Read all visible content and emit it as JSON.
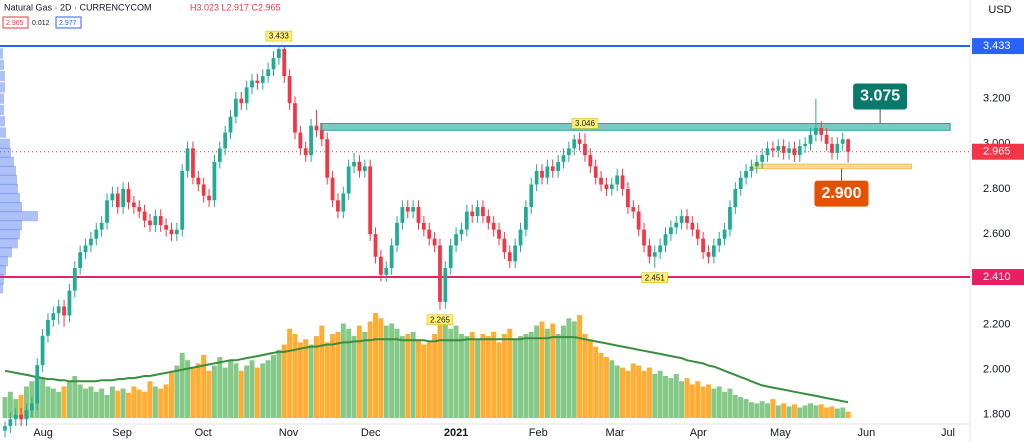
{
  "header": {
    "title": "Natural Gas · 2D · CURRENCYCOM",
    "ohlc": "H3.023 L2.917 C2.965",
    "bid": "2.965",
    "spread": "0.012",
    "ask": "2.977",
    "currency": "USD"
  },
  "chart_data": {
    "type": "candlestick",
    "up_color": "#22ab94",
    "down_color": "#f23645",
    "volume_up_color": "#66bb6a",
    "volume_down_color": "#ff9800",
    "volume_ma_color": "#388e3c",
    "xlim": [
      -0.93,
      179.7
    ],
    "ylim": [
      1.768,
      3.637
    ],
    "grid": false,
    "xticks": [
      {
        "value": 7.1,
        "label": "Aug"
      },
      {
        "value": 21.8,
        "label": "Sep"
      },
      {
        "value": 36.9,
        "label": "Oct"
      },
      {
        "value": 52.8,
        "label": "Nov"
      },
      {
        "value": 68.1,
        "label": "Dec"
      },
      {
        "value": 84,
        "label": "2021"
      },
      {
        "value": 99.3,
        "label": "Feb"
      },
      {
        "value": 113.6,
        "label": "Mar"
      },
      {
        "value": 129.1,
        "label": "Apr"
      },
      {
        "value": 144.4,
        "label": "May"
      },
      {
        "value": 160.4,
        "label": "Jun"
      },
      {
        "value": 175.6,
        "label": "Jul"
      }
    ],
    "yticks": [
      {
        "value": 1.8,
        "label": "1.800"
      },
      {
        "value": 2.0,
        "label": "2.000"
      },
      {
        "value": 2.2,
        "label": "2.200"
      },
      {
        "value": 2.6,
        "label": "2.600"
      },
      {
        "value": 2.8,
        "label": "2.800"
      },
      {
        "value": 3.0,
        "label": "3.000"
      },
      {
        "value": 3.2,
        "label": "3.200"
      }
    ],
    "ohlc": [
      [
        1.73,
        1.77,
        1.7,
        1.75
      ],
      [
        1.75,
        1.81,
        1.72,
        1.78
      ],
      [
        1.78,
        1.83,
        1.75,
        1.8
      ],
      [
        1.8,
        1.83,
        1.75,
        1.78
      ],
      [
        1.78,
        1.85,
        1.75,
        1.82
      ],
      [
        1.82,
        1.88,
        1.79,
        1.85
      ],
      [
        1.85,
        2.05,
        1.82,
        2.02
      ],
      [
        2.02,
        2.18,
        1.99,
        2.15
      ],
      [
        2.15,
        2.25,
        2.12,
        2.22
      ],
      [
        2.22,
        2.28,
        2.19,
        2.25
      ],
      [
        2.25,
        2.31,
        2.2,
        2.28
      ],
      [
        2.28,
        2.31,
        2.19,
        2.24
      ],
      [
        2.24,
        2.38,
        2.21,
        2.35
      ],
      [
        2.35,
        2.48,
        2.32,
        2.45
      ],
      [
        2.45,
        2.55,
        2.42,
        2.52
      ],
      [
        2.52,
        2.58,
        2.49,
        2.55
      ],
      [
        2.55,
        2.61,
        2.52,
        2.58
      ],
      [
        2.58,
        2.65,
        2.55,
        2.62
      ],
      [
        2.62,
        2.68,
        2.59,
        2.65
      ],
      [
        2.65,
        2.78,
        2.62,
        2.75
      ],
      [
        2.75,
        2.81,
        2.72,
        2.78
      ],
      [
        2.78,
        2.81,
        2.69,
        2.72
      ],
      [
        2.72,
        2.83,
        2.69,
        2.8
      ],
      [
        2.8,
        2.83,
        2.71,
        2.74
      ],
      [
        2.74,
        2.77,
        2.69,
        2.72
      ],
      [
        2.72,
        2.75,
        2.67,
        2.7
      ],
      [
        2.7,
        2.73,
        2.63,
        2.66
      ],
      [
        2.66,
        2.69,
        2.61,
        2.64
      ],
      [
        2.64,
        2.71,
        2.61,
        2.68
      ],
      [
        2.68,
        2.71,
        2.61,
        2.64
      ],
      [
        2.64,
        2.67,
        2.59,
        2.62
      ],
      [
        2.62,
        2.65,
        2.57,
        2.6
      ],
      [
        2.6,
        2.65,
        2.57,
        2.62
      ],
      [
        2.62,
        2.91,
        2.59,
        2.88
      ],
      [
        2.88,
        3.01,
        2.85,
        2.98
      ],
      [
        2.98,
        3.01,
        2.82,
        2.85
      ],
      [
        2.85,
        2.88,
        2.79,
        2.82
      ],
      [
        2.82,
        2.85,
        2.74,
        2.77
      ],
      [
        2.77,
        2.8,
        2.72,
        2.75
      ],
      [
        2.75,
        2.95,
        2.72,
        2.92
      ],
      [
        2.92,
        3.01,
        2.89,
        2.98
      ],
      [
        2.98,
        3.08,
        2.95,
        3.05
      ],
      [
        3.05,
        3.15,
        3.02,
        3.12
      ],
      [
        3.12,
        3.23,
        3.09,
        3.2
      ],
      [
        3.2,
        3.23,
        3.15,
        3.18
      ],
      [
        3.18,
        3.28,
        3.15,
        3.25
      ],
      [
        3.25,
        3.31,
        3.22,
        3.28
      ],
      [
        3.28,
        3.31,
        3.24,
        3.27
      ],
      [
        3.27,
        3.33,
        3.24,
        3.3
      ],
      [
        3.3,
        3.36,
        3.27,
        3.33
      ],
      [
        3.33,
        3.41,
        3.3,
        3.38
      ],
      [
        3.38,
        3.433,
        3.35,
        3.42
      ],
      [
        3.42,
        3.43,
        3.27,
        3.3
      ],
      [
        3.3,
        3.33,
        3.15,
        3.18
      ],
      [
        3.18,
        3.21,
        3.02,
        3.05
      ],
      [
        3.05,
        3.08,
        2.95,
        2.98
      ],
      [
        2.98,
        3.01,
        2.92,
        2.95
      ],
      [
        2.95,
        3.11,
        2.92,
        3.08
      ],
      [
        3.08,
        3.15,
        3.03,
        3.06
      ],
      [
        3.06,
        3.09,
        2.99,
        3.02
      ],
      [
        3.02,
        3.05,
        2.82,
        2.85
      ],
      [
        2.85,
        2.88,
        2.72,
        2.75
      ],
      [
        2.75,
        2.78,
        2.67,
        2.7
      ],
      [
        2.7,
        2.81,
        2.67,
        2.78
      ],
      [
        2.78,
        2.93,
        2.75,
        2.9
      ],
      [
        2.9,
        2.96,
        2.87,
        2.92
      ],
      [
        2.92,
        2.95,
        2.85,
        2.88
      ],
      [
        2.88,
        2.93,
        2.85,
        2.9
      ],
      [
        2.9,
        2.93,
        2.57,
        2.6
      ],
      [
        2.6,
        2.63,
        2.47,
        2.5
      ],
      [
        2.5,
        2.53,
        2.39,
        2.42
      ],
      [
        2.42,
        2.48,
        2.39,
        2.45
      ],
      [
        2.45,
        2.58,
        2.42,
        2.55
      ],
      [
        2.55,
        2.68,
        2.52,
        2.65
      ],
      [
        2.65,
        2.75,
        2.62,
        2.72
      ],
      [
        2.72,
        2.75,
        2.67,
        2.7
      ],
      [
        2.7,
        2.75,
        2.67,
        2.72
      ],
      [
        2.72,
        2.75,
        2.62,
        2.65
      ],
      [
        2.65,
        2.68,
        2.59,
        2.62
      ],
      [
        2.62,
        2.65,
        2.55,
        2.58
      ],
      [
        2.58,
        2.61,
        2.52,
        2.55
      ],
      [
        2.55,
        2.58,
        2.265,
        2.3
      ],
      [
        2.3,
        2.48,
        2.27,
        2.45
      ],
      [
        2.45,
        2.58,
        2.42,
        2.55
      ],
      [
        2.55,
        2.63,
        2.52,
        2.6
      ],
      [
        2.6,
        2.65,
        2.57,
        2.62
      ],
      [
        2.62,
        2.73,
        2.59,
        2.7
      ],
      [
        2.7,
        2.73,
        2.65,
        2.68
      ],
      [
        2.68,
        2.75,
        2.65,
        2.72
      ],
      [
        2.72,
        2.75,
        2.65,
        2.68
      ],
      [
        2.68,
        2.71,
        2.62,
        2.65
      ],
      [
        2.65,
        2.68,
        2.59,
        2.62
      ],
      [
        2.62,
        2.65,
        2.55,
        2.58
      ],
      [
        2.58,
        2.61,
        2.49,
        2.52
      ],
      [
        2.52,
        2.55,
        2.45,
        2.48
      ],
      [
        2.48,
        2.58,
        2.45,
        2.55
      ],
      [
        2.55,
        2.65,
        2.52,
        2.62
      ],
      [
        2.62,
        2.75,
        2.59,
        2.72
      ],
      [
        2.72,
        2.85,
        2.69,
        2.82
      ],
      [
        2.82,
        2.91,
        2.79,
        2.88
      ],
      [
        2.88,
        2.91,
        2.82,
        2.85
      ],
      [
        2.85,
        2.93,
        2.82,
        2.9
      ],
      [
        2.9,
        2.93,
        2.85,
        2.88
      ],
      [
        2.88,
        2.95,
        2.85,
        2.92
      ],
      [
        2.92,
        2.98,
        2.89,
        2.95
      ],
      [
        2.95,
        3.01,
        2.92,
        2.98
      ],
      [
        2.98,
        3.04,
        2.95,
        3.02
      ],
      [
        3.02,
        3.05,
        2.97,
        3.0
      ],
      [
        3.0,
        3.046,
        2.92,
        2.95
      ],
      [
        2.95,
        2.98,
        2.87,
        2.9
      ],
      [
        2.9,
        2.93,
        2.82,
        2.85
      ],
      [
        2.85,
        2.88,
        2.79,
        2.82
      ],
      [
        2.82,
        2.85,
        2.77,
        2.8
      ],
      [
        2.8,
        2.85,
        2.77,
        2.82
      ],
      [
        2.82,
        2.89,
        2.79,
        2.86
      ],
      [
        2.86,
        2.89,
        2.77,
        2.8
      ],
      [
        2.8,
        2.83,
        2.69,
        2.72
      ],
      [
        2.72,
        2.75,
        2.67,
        2.7
      ],
      [
        2.7,
        2.73,
        2.59,
        2.62
      ],
      [
        2.62,
        2.65,
        2.52,
        2.55
      ],
      [
        2.55,
        2.58,
        2.47,
        2.5
      ],
      [
        2.5,
        2.55,
        2.451,
        2.52
      ],
      [
        2.52,
        2.58,
        2.49,
        2.55
      ],
      [
        2.55,
        2.63,
        2.52,
        2.6
      ],
      [
        2.6,
        2.66,
        2.57,
        2.63
      ],
      [
        2.63,
        2.68,
        2.6,
        2.65
      ],
      [
        2.65,
        2.71,
        2.62,
        2.68
      ],
      [
        2.68,
        2.71,
        2.62,
        2.65
      ],
      [
        2.65,
        2.68,
        2.59,
        2.62
      ],
      [
        2.62,
        2.65,
        2.55,
        2.58
      ],
      [
        2.58,
        2.61,
        2.49,
        2.52
      ],
      [
        2.52,
        2.55,
        2.47,
        2.5
      ],
      [
        2.5,
        2.58,
        2.47,
        2.55
      ],
      [
        2.55,
        2.61,
        2.52,
        2.58
      ],
      [
        2.58,
        2.65,
        2.55,
        2.62
      ],
      [
        2.62,
        2.75,
        2.59,
        2.72
      ],
      [
        2.72,
        2.83,
        2.69,
        2.8
      ],
      [
        2.8,
        2.88,
        2.77,
        2.85
      ],
      [
        2.85,
        2.91,
        2.82,
        2.88
      ],
      [
        2.88,
        2.93,
        2.85,
        2.9
      ],
      [
        2.9,
        2.95,
        2.87,
        2.92
      ],
      [
        2.92,
        2.98,
        2.89,
        2.95
      ],
      [
        2.95,
        3.01,
        2.92,
        2.98
      ],
      [
        2.98,
        3.01,
        2.94,
        2.97
      ],
      [
        2.97,
        3.02,
        2.94,
        2.99
      ],
      [
        2.99,
        3.02,
        2.93,
        2.96
      ],
      [
        2.96,
        3.01,
        2.93,
        2.98
      ],
      [
        2.98,
        3.01,
        2.92,
        2.95
      ],
      [
        2.95,
        3.02,
        2.92,
        2.99
      ],
      [
        2.99,
        3.03,
        2.96,
        3.0
      ],
      [
        3.0,
        3.07,
        2.97,
        3.04
      ],
      [
        3.04,
        3.2,
        3.01,
        3.07
      ],
      [
        3.07,
        3.1,
        3.01,
        3.04
      ],
      [
        3.04,
        3.07,
        2.97,
        3.0
      ],
      [
        3.0,
        3.03,
        2.93,
        2.96
      ],
      [
        2.96,
        3.03,
        2.93,
        3.0
      ],
      [
        3.0,
        3.05,
        2.97,
        3.02
      ],
      [
        3.02,
        3.023,
        2.917,
        2.965
      ]
    ],
    "volume": [
      20,
      25,
      18,
      22,
      30,
      35,
      40,
      38,
      30,
      28,
      25,
      30,
      35,
      40,
      32,
      28,
      30,
      25,
      28,
      22,
      30,
      26,
      28,
      24,
      30,
      27,
      25,
      35,
      30,
      28,
      32,
      45,
      50,
      62,
      55,
      48,
      52,
      60,
      45,
      50,
      58,
      48,
      55,
      52,
      45,
      50,
      55,
      48,
      52,
      55,
      60,
      65,
      70,
      85,
      80,
      72,
      75,
      70,
      78,
      88,
      72,
      80,
      82,
      90,
      85,
      78,
      88,
      82,
      92,
      100,
      95,
      88,
      90,
      85,
      78,
      80,
      82,
      75,
      70,
      72,
      80,
      95,
      92,
      85,
      88,
      80,
      78,
      82,
      75,
      80,
      78,
      82,
      72,
      80,
      85,
      75,
      78,
      80,
      82,
      88,
      92,
      85,
      90,
      80,
      88,
      95,
      92,
      98,
      80,
      75,
      68,
      62,
      58,
      55,
      50,
      48,
      45,
      52,
      50,
      45,
      48,
      42,
      45,
      40,
      38,
      42,
      35,
      38,
      32,
      35,
      30,
      32,
      28,
      30,
      25,
      28,
      22,
      20,
      18,
      15,
      14,
      16,
      14,
      18,
      12,
      14,
      11,
      13,
      10,
      12,
      14,
      12,
      13,
      10,
      11,
      9,
      10,
      6
    ],
    "volume_ma": [
      45,
      44,
      43,
      42,
      41,
      40,
      39,
      38,
      37,
      37,
      36,
      36,
      35,
      35,
      35,
      35,
      35,
      35,
      36,
      36,
      36,
      37,
      37,
      38,
      38,
      39,
      40,
      40,
      41,
      42,
      43,
      44,
      45,
      46,
      47,
      48,
      49,
      50,
      51,
      52,
      53,
      54,
      55,
      55,
      56,
      57,
      58,
      59,
      60,
      61,
      62,
      63,
      63,
      64,
      65,
      66,
      67,
      68,
      68,
      69,
      70,
      70,
      71,
      72,
      72,
      73,
      73,
      74,
      74,
      75,
      75,
      75,
      75,
      75,
      74,
      74,
      74,
      74,
      74,
      73,
      73,
      74,
      74,
      74,
      74,
      74,
      75,
      75,
      75,
      75,
      75,
      75,
      75,
      75,
      75,
      75,
      75,
      76,
      76,
      76,
      76,
      76,
      77,
      77,
      77,
      77,
      77,
      76,
      75,
      74,
      73,
      72,
      71,
      70,
      69,
      68,
      67,
      66,
      65,
      64,
      63,
      62,
      61,
      60,
      59,
      58,
      57,
      55,
      54,
      53,
      52,
      50,
      49,
      47,
      45,
      43,
      41,
      39,
      37,
      35,
      33,
      31,
      30,
      29,
      28,
      27,
      26,
      25,
      24,
      23,
      22,
      21,
      20,
      19,
      18,
      17,
      16,
      15
    ],
    "volume_profile": {
      "color": "#6a8cf0",
      "prices": [
        3.4,
        3.35,
        3.3,
        3.25,
        3.2,
        3.15,
        3.1,
        3.05,
        3.0,
        2.96,
        2.92,
        2.88,
        2.84,
        2.8,
        2.76,
        2.72,
        2.68,
        2.64,
        2.6,
        2.56,
        2.52,
        2.48,
        2.44,
        2.4,
        2.36
      ],
      "sizes": [
        3,
        4,
        5,
        5,
        4,
        4,
        5,
        6,
        10,
        11,
        14,
        16,
        17,
        18,
        20,
        22,
        38,
        22,
        20,
        18,
        12,
        8,
        6,
        4,
        3
      ]
    },
    "levels": [
      {
        "value": 3.433,
        "label": "3.433",
        "color": "#2962ff"
      },
      {
        "value": 2.41,
        "label": "2.410",
        "color": "#e91e63"
      }
    ],
    "last_price": {
      "value": 2.965,
      "label": "2.965",
      "color": "#f23645"
    },
    "zones": [
      {
        "low": 3.06,
        "high": 3.09,
        "from": 58.8,
        "to": 176,
        "color": "#26a69a",
        "value": 3.075,
        "label": "3.075",
        "callout_color": "#08796b",
        "side": "above"
      },
      {
        "low": 2.89,
        "high": 2.91,
        "from": 139,
        "to": 168.8,
        "color": "#f5c04a",
        "value": 2.9,
        "label": "2.900",
        "callout_color": "#e65100",
        "side": "below"
      }
    ],
    "point_labels": [
      {
        "at": 51,
        "value": 3.433,
        "label": "3.433",
        "side": "above"
      },
      {
        "at": 108,
        "value": 3.046,
        "label": "3.046",
        "side": "above"
      },
      {
        "at": 121,
        "value": 2.451,
        "label": "2.451",
        "side": "below"
      },
      {
        "at": 81,
        "value": 2.265,
        "label": "2.265",
        "side": "below"
      }
    ]
  }
}
